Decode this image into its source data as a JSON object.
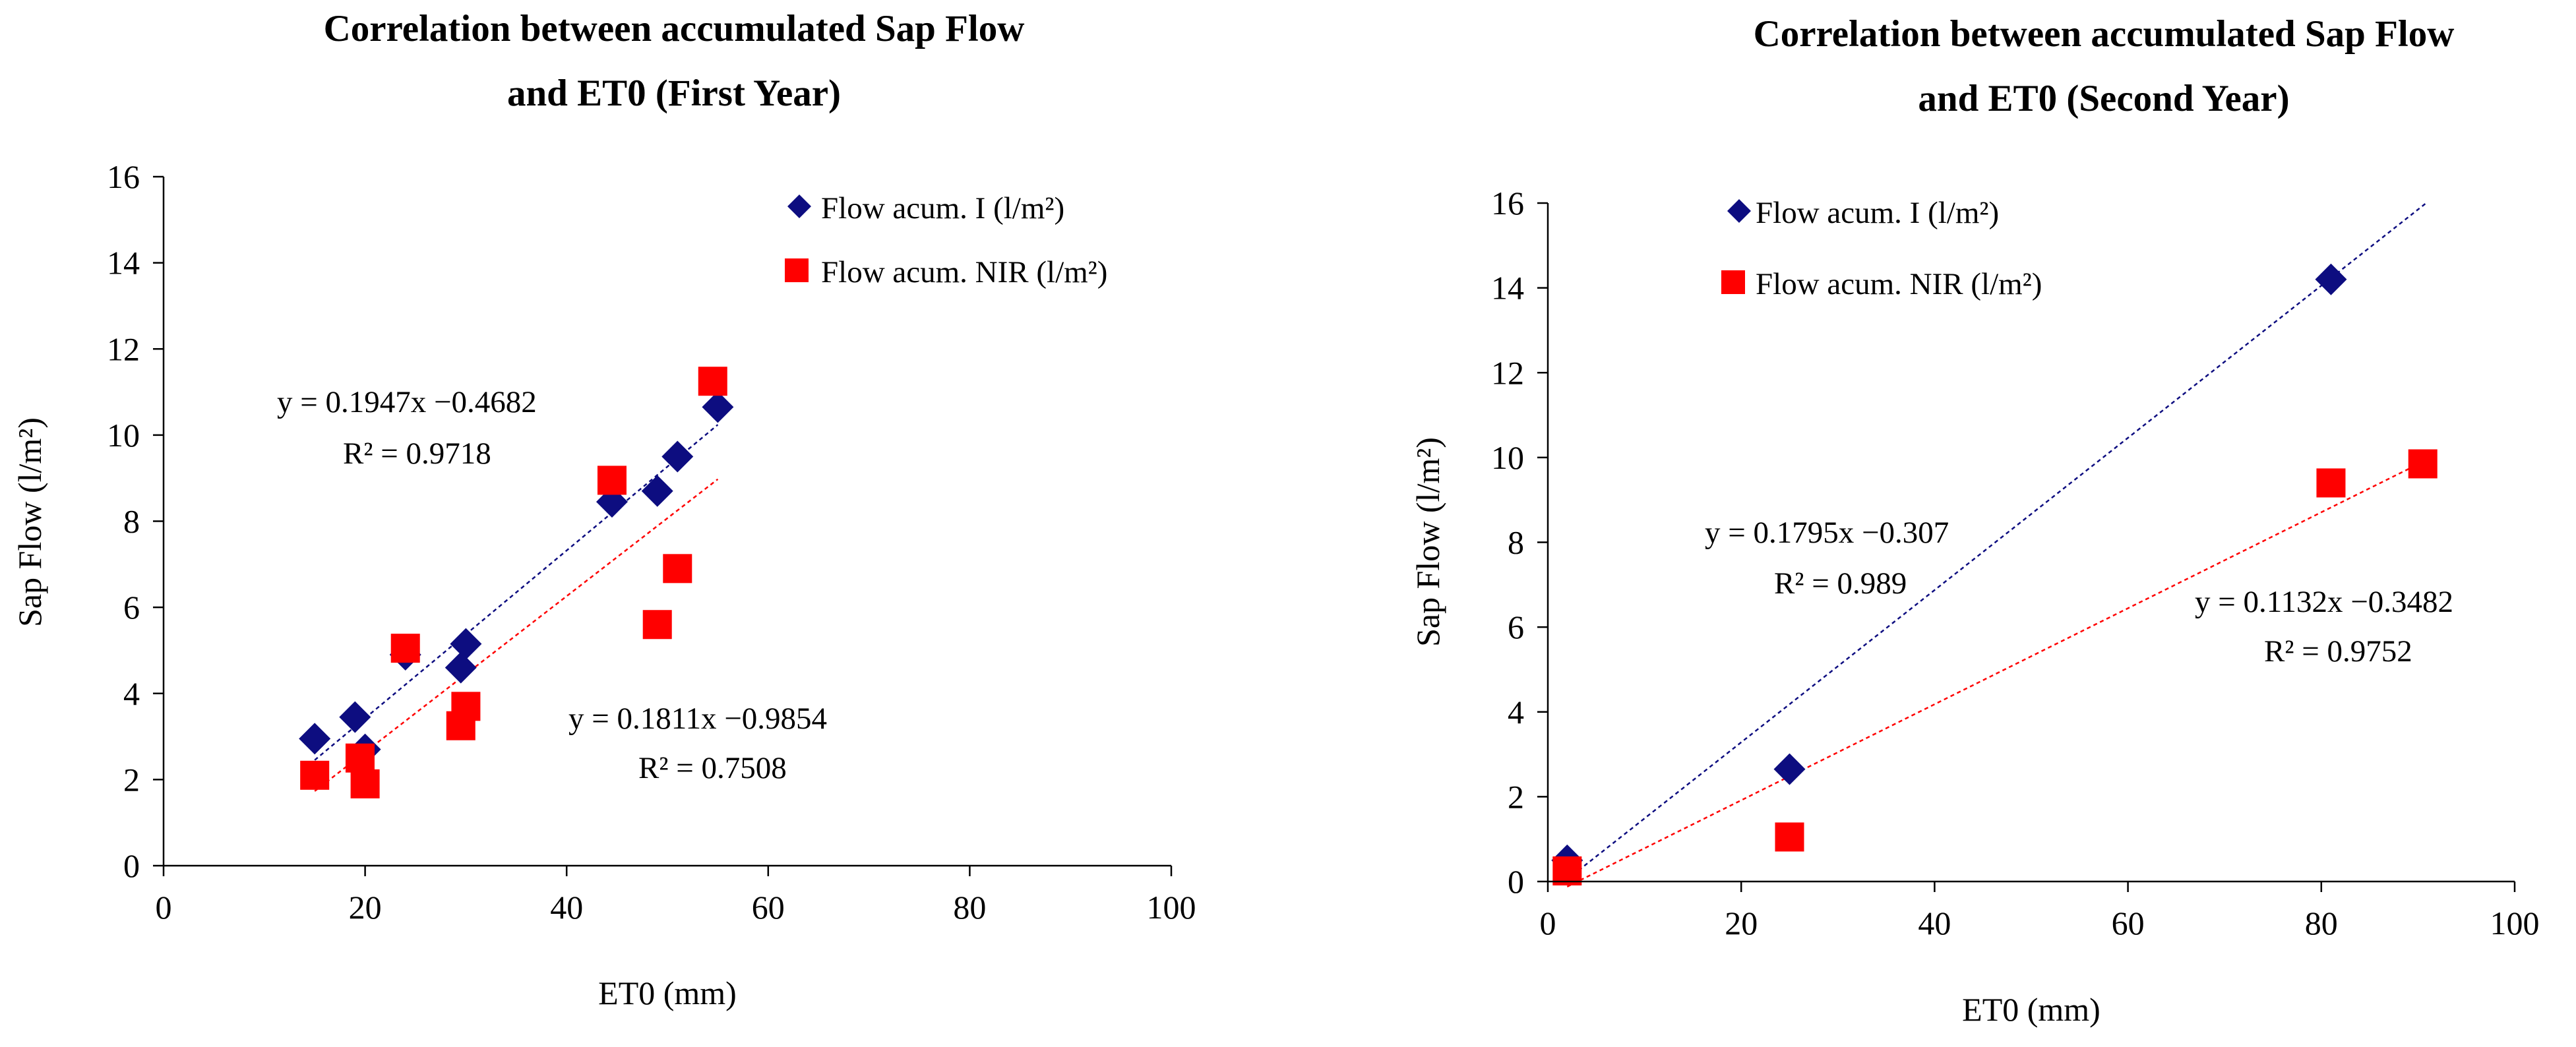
{
  "chart_data": [
    {
      "type": "scatter",
      "title_lines": [
        "Correlation between accumulated Sap Flow",
        "and  ET0 (First Year)"
      ],
      "xlabel": "ET0  (mm)",
      "ylabel": "Sap Flow  (l/m²)",
      "xlim": [
        0,
        100
      ],
      "ylim": [
        0,
        16
      ],
      "xticks": [
        0,
        20,
        40,
        60,
        80,
        100
      ],
      "yticks": [
        0,
        2,
        4,
        6,
        8,
        10,
        12,
        14,
        16
      ],
      "grid": false,
      "legend_position": "top-right",
      "series": [
        {
          "name": "Flow acum. I (l/m²)",
          "marker": "diamond",
          "color": "#0d0d80",
          "x": [
            15,
            19,
            20,
            24,
            29.5,
            30,
            44.5,
            49,
            51,
            55
          ],
          "y": [
            2.95,
            3.45,
            2.7,
            4.9,
            4.6,
            5.15,
            8.45,
            8.7,
            9.5,
            10.65
          ],
          "trendline": {
            "slope": 0.1947,
            "intercept": -0.4682,
            "x_range": [
              15,
              55
            ],
            "color": "#0d0d80",
            "equation": "y = 0.1947x −0.4682",
            "r2": "R² = 0.9718"
          }
        },
        {
          "name": "Flow acum. NIR (l/m²)",
          "marker": "square",
          "color": "#ff0000",
          "x": [
            15,
            19.5,
            20,
            24,
            29.5,
            30,
            44.5,
            49,
            51,
            54.5
          ],
          "y": [
            2.1,
            2.5,
            1.9,
            5.05,
            3.25,
            3.7,
            8.95,
            5.6,
            6.9,
            11.25
          ],
          "trendline": {
            "slope": 0.1811,
            "intercept": -0.9854,
            "x_range": [
              15,
              55
            ],
            "color": "#ff0000",
            "equation": "y = 0.1811x −0.9854",
            "r2": "R² = 0.7508"
          }
        }
      ]
    },
    {
      "type": "scatter",
      "title_lines": [
        "Correlation between accumulated Sap Flow",
        "and  ET0 (Second Year)"
      ],
      "xlabel": "ET0  (mm)",
      "ylabel": "Sap Flow  (l/m²)",
      "xlim": [
        0,
        100
      ],
      "ylim": [
        0,
        16
      ],
      "xticks": [
        0,
        20,
        40,
        60,
        80,
        100
      ],
      "yticks": [
        0,
        2,
        4,
        6,
        8,
        10,
        12,
        14,
        16
      ],
      "grid": false,
      "legend_position": "top-left",
      "series": [
        {
          "name": "Flow acum. I (l/m²)",
          "marker": "diamond",
          "color": "#0d0d80",
          "x": [
            2,
            25,
            81
          ],
          "y": [
            0.5,
            2.65,
            14.2
          ],
          "trendline": {
            "slope": 0.1795,
            "intercept": -0.307,
            "x_range": [
              2,
              91
            ],
            "color": "#0d0d80",
            "equation": "y = 0.1795x −0.307",
            "r2": "R² = 0.989"
          }
        },
        {
          "name": "Flow acum. NIR (l/m²)",
          "marker": "square",
          "color": "#ff0000",
          "x": [
            2,
            25,
            81,
            90.5
          ],
          "y": [
            0.25,
            1.05,
            9.4,
            9.85
          ],
          "trendline": {
            "slope": 0.1132,
            "intercept": -0.3482,
            "x_range": [
              2,
              91
            ],
            "color": "#ff0000",
            "equation": "y = 0.1132x −0.3482",
            "r2": "R² = 0.9752"
          }
        }
      ]
    }
  ]
}
